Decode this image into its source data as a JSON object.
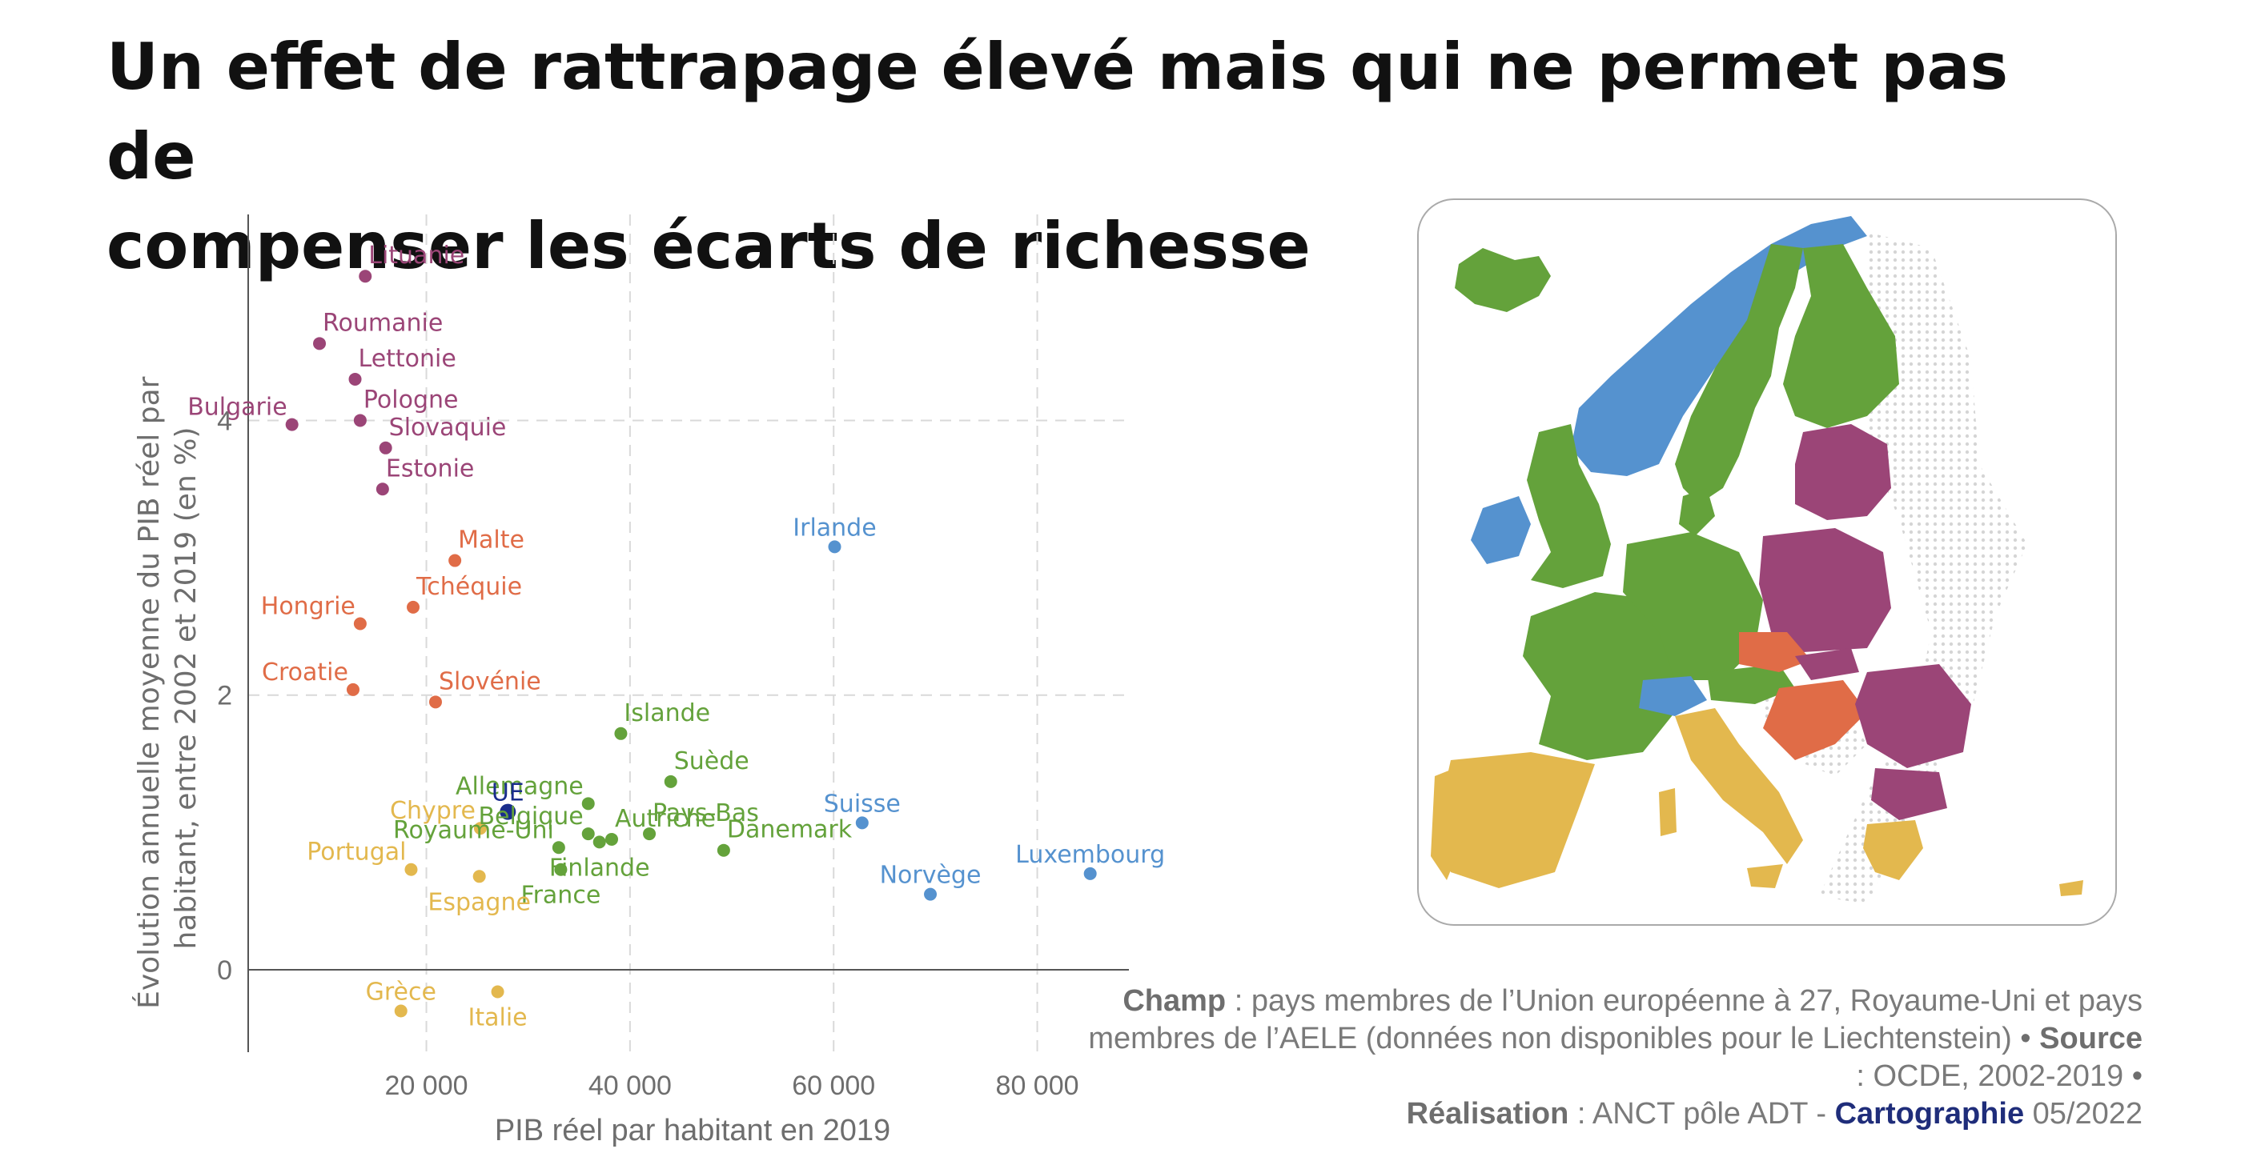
{
  "title_lines": [
    "Un effet de rattrapage élevé mais qui ne permet pas de",
    "compenser les écarts de richesse"
  ],
  "chart_data": {
    "type": "scatter",
    "title": "Un effet de rattrapage élevé mais qui ne permet pas de compenser les écarts de richesse",
    "xlabel": "PIB réel par habitant en 2019",
    "ylabel": "Évolution annuelle moyenne du PIB réel par habitant, entre 2002 et 2019 (en %)",
    "ylabel_lines": [
      "Évolution annuelle moyenne du PIB réel par",
      "habitant, entre 2002 et 2019 (en %)"
    ],
    "xlim": [
      2500,
      89000
    ],
    "ylim": [
      -0.6,
      5.5
    ],
    "x_ticks": [
      {
        "value": 20000,
        "label": "20 000"
      },
      {
        "value": 40000,
        "label": "40 000"
      },
      {
        "value": 60000,
        "label": "60 000"
      },
      {
        "value": 80000,
        "label": "80 000"
      }
    ],
    "y_ticks": [
      {
        "value": 0,
        "label": "0"
      },
      {
        "value": 2,
        "label": "2"
      },
      {
        "value": 4,
        "label": "4"
      }
    ],
    "grid": true,
    "groups": [
      {
        "color": "#9b4577",
        "points": [
          {
            "name": "Lituanie",
            "x": 14000,
            "y": 5.05,
            "label_pos": "right"
          },
          {
            "name": "Roumanie",
            "x": 9500,
            "y": 4.56,
            "label_pos": "right"
          },
          {
            "name": "Lettonie",
            "x": 13000,
            "y": 4.3,
            "label_pos": "right"
          },
          {
            "name": "Bulgarie",
            "x": 6800,
            "y": 3.97,
            "label_pos": "left"
          },
          {
            "name": "Pologne",
            "x": 13500,
            "y": 4.0,
            "label_pos": "right"
          },
          {
            "name": "Slovaquie",
            "x": 16000,
            "y": 3.8,
            "label_pos": "right"
          },
          {
            "name": "Estonie",
            "x": 15700,
            "y": 3.5,
            "label_pos": "right"
          }
        ]
      },
      {
        "color": "#e06c47",
        "points": [
          {
            "name": "Malte",
            "x": 22800,
            "y": 2.98,
            "label_pos": "right"
          },
          {
            "name": "Tchéquie",
            "x": 18700,
            "y": 2.64,
            "label_pos": "right"
          },
          {
            "name": "Hongrie",
            "x": 13500,
            "y": 2.52,
            "label_pos": "left"
          },
          {
            "name": "Croatie",
            "x": 12800,
            "y": 2.04,
            "label_pos": "left"
          },
          {
            "name": "Slovénie",
            "x": 20900,
            "y": 1.95,
            "label_pos": "right"
          }
        ]
      },
      {
        "color": "#64a23b",
        "points": [
          {
            "name": "Islande",
            "x": 39100,
            "y": 1.72,
            "label_pos": "right"
          },
          {
            "name": "Suède",
            "x": 44000,
            "y": 1.37,
            "label_pos": "right"
          },
          {
            "name": "Allemagne",
            "x": 35900,
            "y": 1.21,
            "label_pos": "left"
          },
          {
            "name": "Pays-Bas",
            "x": 41900,
            "y": 0.99,
            "label_pos": "right"
          },
          {
            "name": "Belgique",
            "x": 35900,
            "y": 0.99,
            "label_pos": "left"
          },
          {
            "name": "Danemark",
            "x": 49200,
            "y": 0.87,
            "label_pos": "right"
          },
          {
            "name": "Royaume-Uni",
            "x": 33000,
            "y": 0.89,
            "label_pos": "left"
          },
          {
            "name": "Autriche",
            "x": 38200,
            "y": 0.95,
            "label_pos": "right"
          },
          {
            "name": "Finlande",
            "x": 37000,
            "y": 0.93,
            "label_pos": "below"
          },
          {
            "name": "France",
            "x": 33200,
            "y": 0.73,
            "label_pos": "below"
          }
        ]
      },
      {
        "color": "#e3b84e",
        "points": [
          {
            "name": "Chypre",
            "x": 25300,
            "y": 1.03,
            "label_pos": "left"
          },
          {
            "name": "Portugal",
            "x": 18500,
            "y": 0.73,
            "label_pos": "left"
          },
          {
            "name": "Espagne",
            "x": 25200,
            "y": 0.68,
            "label_pos": "below"
          },
          {
            "name": "Grèce",
            "x": 17500,
            "y": -0.3,
            "label_pos": "above"
          },
          {
            "name": "Italie",
            "x": 27000,
            "y": -0.16,
            "label_pos": "below"
          }
        ]
      },
      {
        "color": "#5592cf",
        "points": [
          {
            "name": "Irlande",
            "x": 60100,
            "y": 3.08,
            "label_pos": "above"
          },
          {
            "name": "Suisse",
            "x": 62800,
            "y": 1.07,
            "label_pos": "above"
          },
          {
            "name": "Norvège",
            "x": 69500,
            "y": 0.55,
            "label_pos": "above"
          },
          {
            "name": "Luxembourg",
            "x": 85200,
            "y": 0.7,
            "label_pos": "above"
          }
        ]
      },
      {
        "color": "#1a2d8c",
        "points": [
          {
            "name": "UE",
            "x": 28000,
            "y": 1.15,
            "label_pos": "above",
            "highlight": true
          }
        ]
      }
    ]
  },
  "map": {
    "description_colors": {
      "green": "#64a23b",
      "blue": "#5592cf",
      "purple": "#9b4577",
      "orange": "#e06c47",
      "yellow": "#e3b84e",
      "neighbors_dots": "#d5d5d5"
    }
  },
  "caption": {
    "champ_label": "Champ",
    "champ_text": " : pays membres de l’Union européenne à 27, Royaume-Uni et pays membres de l’AELE (données non disponibles pour le Liechtenstein) ",
    "bullet": "•",
    "source_label": "Source",
    "source_text": " : OCDE, 2002-2019 ",
    "realisation_label": "Réalisation",
    "realisation_text": " : ANCT pôle ADT - ",
    "brand": "Cartographie",
    "date": " 05/2022"
  }
}
